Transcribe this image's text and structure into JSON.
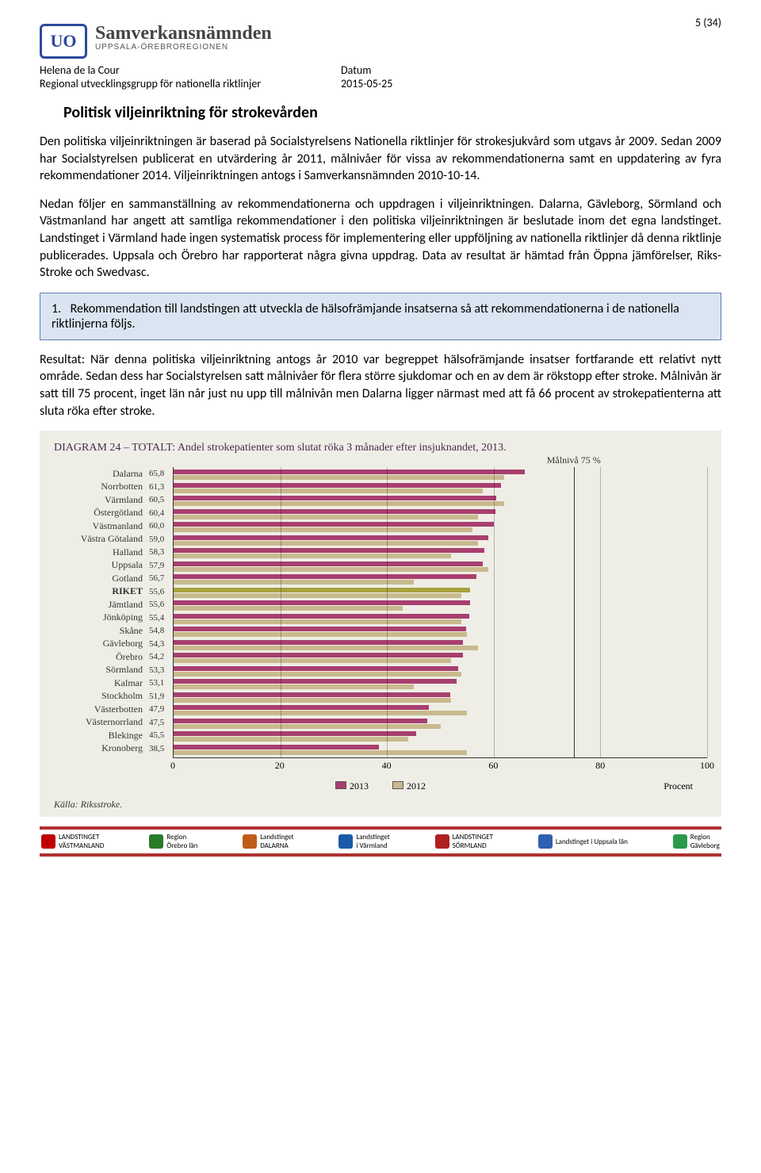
{
  "page_label": "5 (34)",
  "org": {
    "name": "Samverkansnämnden",
    "sub": "UPPSALA-ÖREBROREGIONEN",
    "logo": "UO"
  },
  "meta": {
    "author": "Helena de la Cour",
    "group": "Regional utvecklingsgrupp för nationella riktlinjer",
    "date_label": "Datum",
    "date": "2015-05-25"
  },
  "title": "Politisk viljeinriktning för strokevården",
  "para1": "Den politiska viljeinriktningen är baserad på Socialstyrelsens Nationella riktlinjer för strokesjukvård som utgavs år 2009. Sedan 2009 har Socialstyrelsen publicerat en utvärdering år 2011, målnivåer för vissa av rekommendationerna samt en uppdatering av fyra rekommendationer 2014. Viljeinriktningen antogs i Samverkansnämnden 2010-10-14.",
  "para2": "Nedan följer en sammanställning av rekommendationerna och uppdragen i viljeinriktningen. Dalarna, Gävleborg, Sörmland och Västmanland har angett att samtliga rekommendationer i den politiska viljeinriktningen är beslutade inom det egna landstinget. Landstinget i Värmland hade ingen systematisk process för implementering eller uppföljning av nationella riktlinjer då denna riktlinje publicerades. Uppsala och Örebro har rapporterat några givna uppdrag. Data av resultat är hämtad från Öppna jämförelser, Riks-Stroke och Swedvasc.",
  "rec": {
    "num": "1.",
    "text": "Rekommendation till landstingen att utveckla de hälsofrämjande insatserna så att rekommendationerna i de nationella riktlinjerna följs."
  },
  "para3": "Resultat: När denna politiska viljeinriktning antogs år 2010 var begreppet hälsofrämjande insatser fortfarande ett relativt nytt område. Sedan dess har Socialstyrelsen satt målnivåer för flera större sjukdomar och en av dem är rökstopp efter stroke. Målnivån är satt till 75 procent, inget län når just nu upp till målnivån men Dalarna ligger närmast med att få 66 procent av strokepatienterna att sluta röka efter stroke.",
  "chart": {
    "type": "bar",
    "background_color": "#efeee6",
    "title_color": "#4a2b52",
    "title": "DIAGRAM 24 – TOTALT: Andel strokepatienter som slutat röka 3 månader efter insjuknandet, 2013.",
    "goal_label": "Målnivå 75 %",
    "goal_value": 75,
    "xlim": [
      0,
      100
    ],
    "xticks": [
      0,
      20,
      40,
      60,
      80,
      100
    ],
    "xunit": "Procent",
    "series": [
      {
        "name": "2013",
        "color": "#a83f6f"
      },
      {
        "name": "2012",
        "color": "#c9b98e"
      }
    ],
    "riket_color": "#a8a23f",
    "rows": [
      {
        "name": "Dalarna",
        "val": 65.8,
        "v2013": 65.8,
        "v2012": 62
      },
      {
        "name": "Norrbotten",
        "val": 61.3,
        "v2013": 61.3,
        "v2012": 58
      },
      {
        "name": "Värmland",
        "val": 60.5,
        "v2013": 60.5,
        "v2012": 62
      },
      {
        "name": "Östergötland",
        "val": 60.4,
        "v2013": 60.4,
        "v2012": 57
      },
      {
        "name": "Västmanland",
        "val": 60.0,
        "v2013": 60.0,
        "v2012": 56
      },
      {
        "name": "Västra Götaland",
        "val": 59.0,
        "v2013": 59.0,
        "v2012": 57
      },
      {
        "name": "Halland",
        "val": 58.3,
        "v2013": 58.3,
        "v2012": 52
      },
      {
        "name": "Uppsala",
        "val": 57.9,
        "v2013": 57.9,
        "v2012": 59
      },
      {
        "name": "Gotland",
        "val": 56.7,
        "v2013": 56.7,
        "v2012": 45
      },
      {
        "name": "RIKET",
        "val": 55.6,
        "v2013": 55.6,
        "v2012": 54,
        "highlight": true
      },
      {
        "name": "Jämtland",
        "val": 55.6,
        "v2013": 55.6,
        "v2012": 43
      },
      {
        "name": "Jönköping",
        "val": 55.4,
        "v2013": 55.4,
        "v2012": 54
      },
      {
        "name": "Skåne",
        "val": 54.8,
        "v2013": 54.8,
        "v2012": 55
      },
      {
        "name": "Gävleborg",
        "val": 54.3,
        "v2013": 54.3,
        "v2012": 57
      },
      {
        "name": "Örebro",
        "val": 54.2,
        "v2013": 54.2,
        "v2012": 52
      },
      {
        "name": "Sörmland",
        "val": 53.3,
        "v2013": 53.3,
        "v2012": 54
      },
      {
        "name": "Kalmar",
        "val": 53.1,
        "v2013": 53.1,
        "v2012": 45
      },
      {
        "name": "Stockholm",
        "val": 51.9,
        "v2013": 51.9,
        "v2012": 52
      },
      {
        "name": "Västerbotten",
        "val": 47.9,
        "v2013": 47.9,
        "v2012": 55
      },
      {
        "name": "Västernorrland",
        "val": 47.5,
        "v2013": 47.5,
        "v2012": 50
      },
      {
        "name": "Blekinge",
        "val": 45.5,
        "v2013": 45.5,
        "v2012": 44
      },
      {
        "name": "Kronoberg",
        "val": 38.5,
        "v2013": 38.5,
        "v2012": 55
      }
    ],
    "source": "Källa: Riksstroke."
  },
  "footer": [
    {
      "l1": "LANDSTINGET",
      "l2": "VÄSTMANLAND",
      "c": "#c00000"
    },
    {
      "l1": "Region",
      "l2": "Örebro län",
      "c": "#2a7a2a"
    },
    {
      "l1": "Landstinget",
      "l2": "DALARNA",
      "c": "#c05a1a"
    },
    {
      "l1": "Landstinget",
      "l2": "i Värmland",
      "c": "#1a5aa8"
    },
    {
      "l1": "LANDSTINGET",
      "l2": "SÖRMLAND",
      "c": "#b02020"
    },
    {
      "l1": "Landstinget i Uppsala län",
      "l2": "",
      "c": "#3060b0"
    },
    {
      "l1": "Region",
      "l2": "Gävleborg",
      "c": "#2a9a4a"
    }
  ]
}
